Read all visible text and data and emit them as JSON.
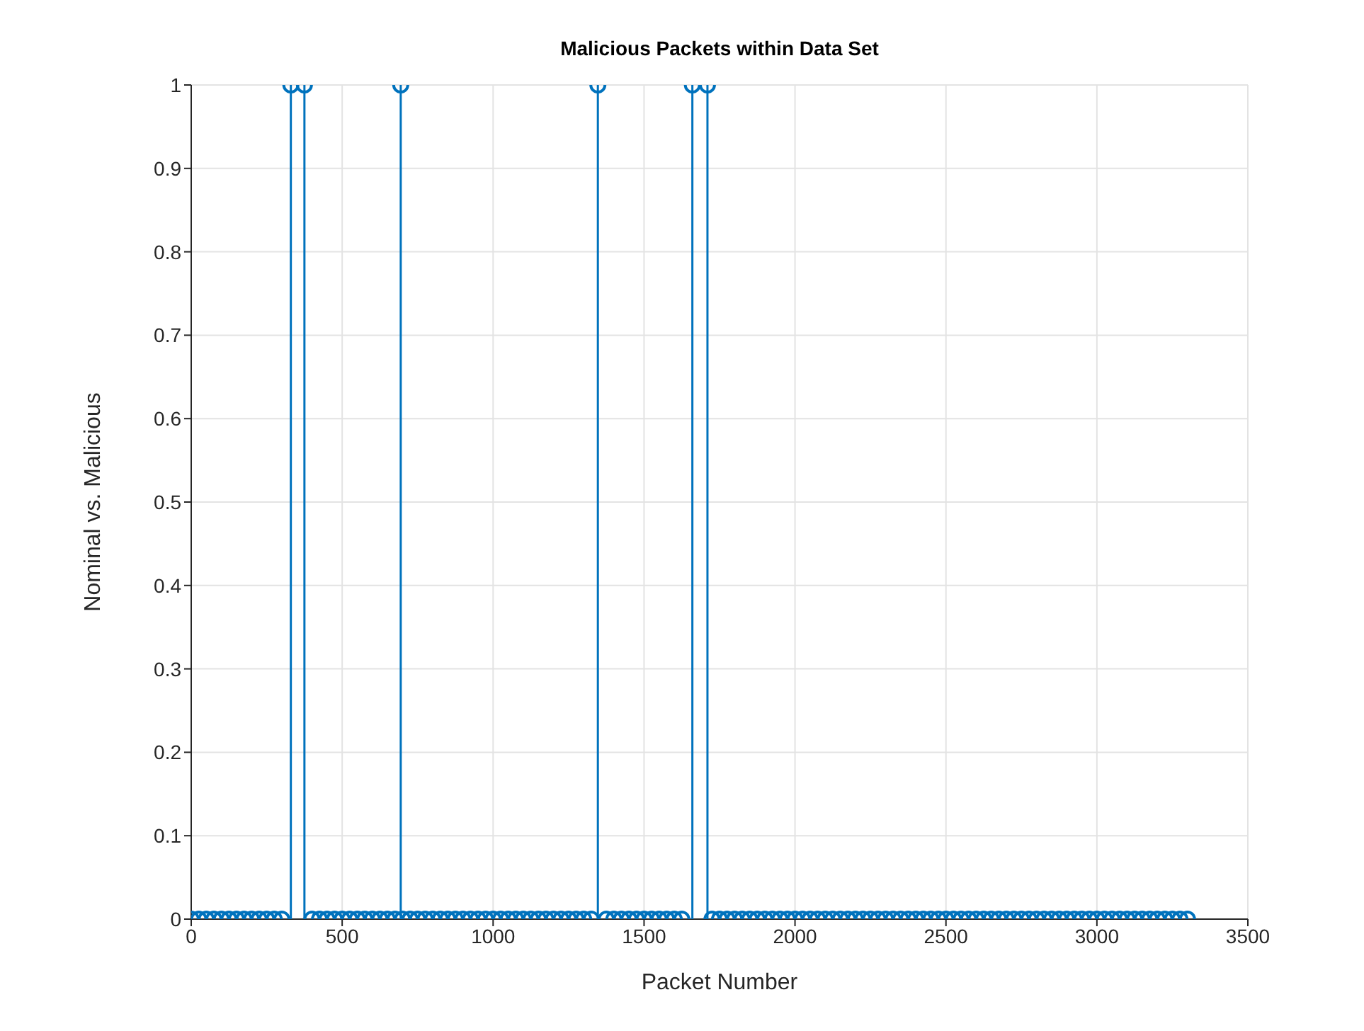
{
  "chart_data": {
    "type": "lollipop",
    "title": "Malicious Packets within Data Set",
    "xlabel": "Packet Number",
    "ylabel": "Nominal vs. Malicious",
    "x": [
      0,
      25,
      50,
      75,
      100,
      125,
      150,
      175,
      200,
      225,
      250,
      275,
      300,
      330,
      375,
      400,
      425,
      450,
      475,
      500,
      525,
      550,
      575,
      600,
      625,
      650,
      675,
      694,
      700,
      725,
      750,
      775,
      800,
      825,
      850,
      875,
      900,
      925,
      950,
      975,
      1000,
      1025,
      1050,
      1075,
      1100,
      1125,
      1150,
      1175,
      1200,
      1225,
      1250,
      1275,
      1300,
      1325,
      1347,
      1375,
      1400,
      1425,
      1450,
      1475,
      1500,
      1525,
      1550,
      1575,
      1600,
      1625,
      1660,
      1710,
      1725,
      1750,
      1775,
      1800,
      1825,
      1850,
      1875,
      1900,
      1925,
      1950,
      1975,
      2000,
      2025,
      2050,
      2075,
      2100,
      2125,
      2150,
      2175,
      2200,
      2225,
      2250,
      2275,
      2300,
      2325,
      2350,
      2375,
      2400,
      2425,
      2450,
      2475,
      2500,
      2525,
      2550,
      2575,
      2600,
      2625,
      2650,
      2675,
      2700,
      2725,
      2750,
      2775,
      2800,
      2825,
      2850,
      2875,
      2900,
      2925,
      2950,
      2975,
      3000,
      3025,
      3050,
      3075,
      3100,
      3125,
      3150,
      3175,
      3200,
      3225,
      3250,
      3275,
      3300
    ],
    "values": [
      0,
      0,
      0,
      0,
      0,
      0,
      0,
      0,
      0,
      0,
      0,
      0,
      0,
      1,
      1,
      0,
      0,
      0,
      0,
      0,
      0,
      0,
      0,
      0,
      0,
      0,
      0,
      1,
      0,
      0,
      0,
      0,
      0,
      0,
      0,
      0,
      0,
      0,
      0,
      0,
      0,
      0,
      0,
      0,
      0,
      0,
      0,
      0,
      0,
      0,
      0,
      0,
      0,
      0,
      1,
      0,
      0,
      0,
      0,
      0,
      0,
      0,
      0,
      0,
      0,
      0,
      1,
      1,
      0,
      0,
      0,
      0,
      0,
      0,
      0,
      0,
      0,
      0,
      0,
      0,
      0,
      0,
      0,
      0,
      0,
      0,
      0,
      0,
      0,
      0,
      0,
      0,
      0,
      0,
      0,
      0,
      0,
      0,
      0,
      0,
      0,
      0,
      0,
      0,
      0,
      0,
      0,
      0,
      0,
      0,
      0,
      0,
      0,
      0,
      0,
      0,
      0,
      0,
      0,
      0,
      0,
      0,
      0,
      0,
      0,
      0,
      0,
      0,
      0,
      0,
      0,
      0
    ],
    "color": "#0072bd",
    "marker": "circle",
    "xlim": [
      0,
      3500
    ],
    "xticks": [
      0,
      500,
      1000,
      1500,
      2000,
      2500,
      3000,
      3500
    ],
    "ylim": [
      0,
      1
    ],
    "yticks": [
      0,
      0.1,
      0.2,
      0.3,
      0.4,
      0.5,
      0.6,
      0.7,
      0.8,
      0.9,
      1
    ],
    "grid": true
  }
}
